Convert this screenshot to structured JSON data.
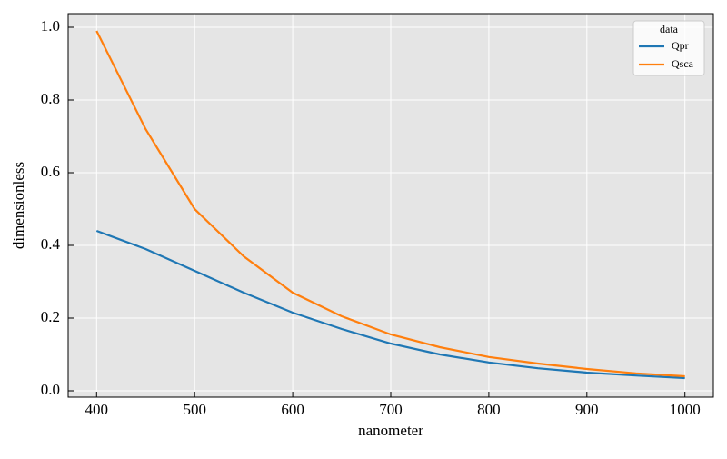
{
  "chart_data": {
    "type": "line",
    "xlabel": "nanometer",
    "ylabel": "dimensionless",
    "x": [
      400,
      450,
      500,
      550,
      600,
      650,
      700,
      750,
      800,
      850,
      900,
      950,
      1000
    ],
    "series": [
      {
        "name": "Qpr",
        "color": "#1f77b4",
        "values": [
          0.44,
          0.39,
          0.33,
          0.27,
          0.215,
          0.17,
          0.13,
          0.1,
          0.078,
          0.062,
          0.05,
          0.042,
          0.035
        ]
      },
      {
        "name": "Qsca",
        "color": "#ff7f0e",
        "values": [
          0.99,
          0.72,
          0.5,
          0.37,
          0.27,
          0.205,
          0.155,
          0.12,
          0.093,
          0.075,
          0.06,
          0.048,
          0.04
        ]
      }
    ],
    "legend_title": "data",
    "legend": "upper right",
    "xlim": [
      371,
      1029
    ],
    "ylim": [
      -0.0175,
      1.0375
    ],
    "xticks": [
      400,
      500,
      600,
      700,
      800,
      900,
      1000
    ],
    "yticks": [
      {
        "value": 0,
        "label": "0.0"
      },
      0.2,
      0.4,
      0.6,
      0.8,
      {
        "value": 1,
        "label": "1.0"
      }
    ],
    "grid": true
  }
}
